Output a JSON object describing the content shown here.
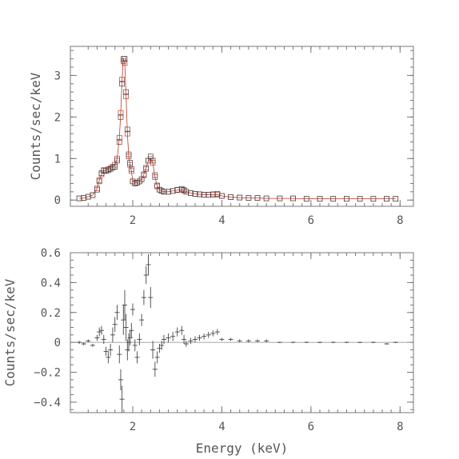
{
  "chart_data": [
    {
      "type": "scatter",
      "panel": "top",
      "ylabel": "Counts/sec/keV",
      "xlim": [
        0.6,
        8.3
      ],
      "ylim": [
        -0.15,
        3.7
      ],
      "x_ticks": [
        "2",
        "4",
        "6",
        "8"
      ],
      "y_ticks": [
        "0",
        "1",
        "2",
        "3"
      ],
      "x_tick_values": [
        2,
        4,
        6,
        8
      ],
      "y_tick_values": [
        0,
        1,
        2,
        3
      ],
      "series": [
        {
          "style": "data",
          "marker": "square",
          "color": "#444444",
          "x": [
            0.8,
            0.9,
            1.0,
            1.1,
            1.2,
            1.25,
            1.3,
            1.35,
            1.4,
            1.45,
            1.5,
            1.55,
            1.6,
            1.65,
            1.7,
            1.73,
            1.76,
            1.79,
            1.82,
            1.85,
            1.88,
            1.91,
            1.94,
            1.97,
            2.0,
            2.05,
            2.1,
            2.15,
            2.2,
            2.25,
            2.3,
            2.35,
            2.4,
            2.45,
            2.5,
            2.55,
            2.6,
            2.65,
            2.7,
            2.8,
            2.9,
            3.0,
            3.1,
            3.15,
            3.2,
            3.3,
            3.4,
            3.5,
            3.6,
            3.7,
            3.8,
            3.9,
            4.0,
            4.2,
            4.4,
            4.6,
            4.8,
            5.0,
            5.3,
            5.6,
            5.9,
            6.2,
            6.5,
            6.8,
            7.1,
            7.4,
            7.7,
            7.9
          ],
          "y": [
            0.04,
            0.05,
            0.08,
            0.12,
            0.25,
            0.45,
            0.65,
            0.72,
            0.7,
            0.72,
            0.75,
            0.78,
            0.8,
            0.95,
            1.4,
            2.0,
            2.8,
            3.35,
            3.4,
            2.6,
            1.7,
            1.1,
            0.9,
            0.75,
            0.45,
            0.4,
            0.42,
            0.45,
            0.5,
            0.6,
            0.75,
            0.95,
            1.05,
            0.95,
            0.6,
            0.35,
            0.25,
            0.22,
            0.2,
            0.2,
            0.22,
            0.25,
            0.27,
            0.24,
            0.2,
            0.17,
            0.15,
            0.14,
            0.13,
            0.13,
            0.14,
            0.15,
            0.1,
            0.07,
            0.06,
            0.05,
            0.05,
            0.04,
            0.04,
            0.04,
            0.03,
            0.03,
            0.03,
            0.03,
            0.03,
            0.03,
            0.03,
            0.03
          ]
        },
        {
          "style": "model",
          "marker": "square",
          "color": "#c0392b",
          "x": [
            0.8,
            0.9,
            1.0,
            1.1,
            1.2,
            1.25,
            1.3,
            1.35,
            1.4,
            1.45,
            1.5,
            1.55,
            1.6,
            1.65,
            1.7,
            1.73,
            1.76,
            1.79,
            1.82,
            1.85,
            1.88,
            1.91,
            1.94,
            1.97,
            2.0,
            2.05,
            2.1,
            2.15,
            2.2,
            2.25,
            2.3,
            2.35,
            2.4,
            2.45,
            2.5,
            2.55,
            2.6,
            2.65,
            2.7,
            2.8,
            2.9,
            3.0,
            3.1,
            3.15,
            3.2,
            3.3,
            3.4,
            3.5,
            3.6,
            3.7,
            3.8,
            3.9,
            4.0,
            4.2,
            4.4,
            4.6,
            4.8,
            5.0,
            5.3,
            5.6,
            5.9,
            6.2,
            6.5,
            6.8,
            7.1,
            7.4,
            7.7,
            7.9
          ],
          "y": [
            0.04,
            0.05,
            0.08,
            0.12,
            0.28,
            0.48,
            0.62,
            0.7,
            0.72,
            0.74,
            0.76,
            0.8,
            0.85,
            1.0,
            1.5,
            2.1,
            2.9,
            3.4,
            3.3,
            2.5,
            1.6,
            1.05,
            0.85,
            0.7,
            0.45,
            0.42,
            0.42,
            0.45,
            0.5,
            0.62,
            0.78,
            0.95,
            1.0,
            0.9,
            0.55,
            0.33,
            0.25,
            0.22,
            0.2,
            0.2,
            0.22,
            0.24,
            0.25,
            0.23,
            0.2,
            0.17,
            0.15,
            0.14,
            0.13,
            0.13,
            0.13,
            0.13,
            0.1,
            0.07,
            0.06,
            0.05,
            0.05,
            0.04,
            0.04,
            0.04,
            0.03,
            0.03,
            0.03,
            0.03,
            0.03,
            0.03,
            0.03,
            0.03
          ]
        }
      ]
    },
    {
      "type": "scatter",
      "panel": "bottom",
      "xlabel": "Energy (keV)",
      "ylabel": "Counts/sec/keV",
      "xlim": [
        0.6,
        8.3
      ],
      "ylim": [
        -0.47,
        0.6
      ],
      "x_ticks": [
        "2",
        "4",
        "6",
        "8"
      ],
      "y_ticks": [
        "0.6",
        "0.4",
        "0.2",
        "0",
        "−0.2",
        "−0.4"
      ],
      "x_tick_values": [
        2,
        4,
        6,
        8
      ],
      "y_tick_values": [
        0.6,
        0.4,
        0.2,
        0,
        -0.2,
        -0.4
      ],
      "series": [
        {
          "style": "residuals",
          "color": "#444444",
          "x": [
            0.8,
            0.9,
            1.0,
            1.1,
            1.2,
            1.25,
            1.3,
            1.35,
            1.4,
            1.45,
            1.5,
            1.55,
            1.6,
            1.65,
            1.7,
            1.73,
            1.76,
            1.79,
            1.82,
            1.85,
            1.88,
            1.91,
            1.94,
            1.97,
            2.0,
            2.05,
            2.1,
            2.15,
            2.2,
            2.25,
            2.3,
            2.35,
            2.4,
            2.45,
            2.5,
            2.55,
            2.6,
            2.65,
            2.7,
            2.8,
            2.9,
            3.0,
            3.1,
            3.15,
            3.2,
            3.3,
            3.4,
            3.5,
            3.6,
            3.7,
            3.8,
            3.9,
            4.0,
            4.2,
            4.4,
            4.6,
            4.8,
            5.0,
            5.3,
            5.6,
            5.9,
            6.2,
            6.5,
            6.8,
            7.1,
            7.4,
            7.7,
            7.9
          ],
          "y": [
            0.0,
            -0.01,
            0.01,
            -0.02,
            0.03,
            0.07,
            0.08,
            0.02,
            -0.06,
            -0.1,
            -0.05,
            0.05,
            0.12,
            0.2,
            -0.08,
            -0.25,
            -0.38,
            0.15,
            0.25,
            0.1,
            -0.05,
            0.0,
            0.03,
            0.08,
            0.22,
            -0.02,
            -0.1,
            0.02,
            0.15,
            0.3,
            0.45,
            0.52,
            0.3,
            -0.05,
            -0.18,
            -0.1,
            -0.04,
            -0.02,
            0.02,
            0.03,
            0.04,
            0.07,
            0.08,
            0.02,
            -0.01,
            0.01,
            0.02,
            0.03,
            0.04,
            0.05,
            0.06,
            0.07,
            0.02,
            0.02,
            0.01,
            0.01,
            0.01,
            0.01,
            0.0,
            0.0,
            0.0,
            0.0,
            0.0,
            0.0,
            0.0,
            0.0,
            -0.01,
            0.0
          ],
          "err": [
            0.01,
            0.01,
            0.01,
            0.01,
            0.02,
            0.03,
            0.03,
            0.03,
            0.03,
            0.04,
            0.04,
            0.05,
            0.05,
            0.05,
            0.06,
            0.07,
            0.09,
            0.1,
            0.1,
            0.09,
            0.07,
            0.06,
            0.05,
            0.05,
            0.04,
            0.04,
            0.04,
            0.04,
            0.04,
            0.05,
            0.06,
            0.07,
            0.07,
            0.06,
            0.05,
            0.04,
            0.03,
            0.03,
            0.03,
            0.03,
            0.03,
            0.03,
            0.03,
            0.03,
            0.02,
            0.02,
            0.02,
            0.02,
            0.02,
            0.02,
            0.02,
            0.02,
            0.01,
            0.01,
            0.01,
            0.01,
            0.01,
            0.01,
            0.005,
            0.005,
            0.005,
            0.005,
            0.005,
            0.005,
            0.005,
            0.005,
            0.005,
            0.005
          ]
        }
      ]
    }
  ]
}
